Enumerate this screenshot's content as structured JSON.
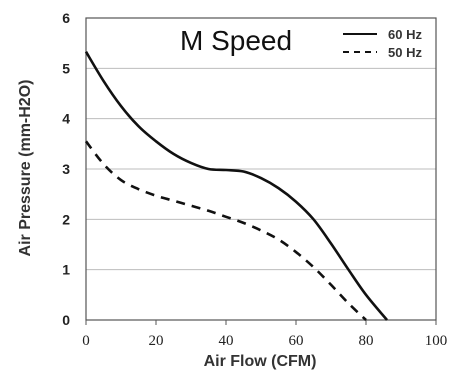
{
  "chart_data": {
    "type": "line",
    "title": "M Speed",
    "xlabel": "Air Flow (CFM)",
    "ylabel": "Air Pressure (mm-H2O)",
    "xlim": [
      0,
      100
    ],
    "ylim": [
      0,
      6
    ],
    "x_ticks": [
      "0",
      "20",
      "40",
      "60",
      "80",
      "100"
    ],
    "y_ticks": [
      "0",
      "1",
      "2",
      "3",
      "4",
      "5",
      "6"
    ],
    "grid": "horizontal",
    "legend_position": "top-right",
    "series": [
      {
        "name": "60 Hz",
        "style": "solid",
        "color": "#111111",
        "x": [
          0,
          5,
          10,
          15,
          20,
          25,
          30,
          35,
          40,
          45,
          50,
          55,
          60,
          65,
          70,
          75,
          80,
          86
        ],
        "y": [
          5.33,
          4.75,
          4.25,
          3.85,
          3.55,
          3.3,
          3.12,
          3.0,
          2.98,
          2.95,
          2.82,
          2.62,
          2.35,
          2.0,
          1.52,
          1.0,
          0.5,
          0
        ]
      },
      {
        "name": "50 Hz",
        "style": "dashed",
        "color": "#111111",
        "x": [
          0,
          5,
          10,
          15,
          20,
          25,
          30,
          35,
          40,
          45,
          50,
          55,
          60,
          65,
          70,
          75,
          80
        ],
        "y": [
          3.55,
          3.1,
          2.78,
          2.6,
          2.47,
          2.37,
          2.27,
          2.17,
          2.05,
          1.93,
          1.78,
          1.6,
          1.35,
          1.05,
          0.7,
          0.33,
          0
        ]
      }
    ]
  }
}
